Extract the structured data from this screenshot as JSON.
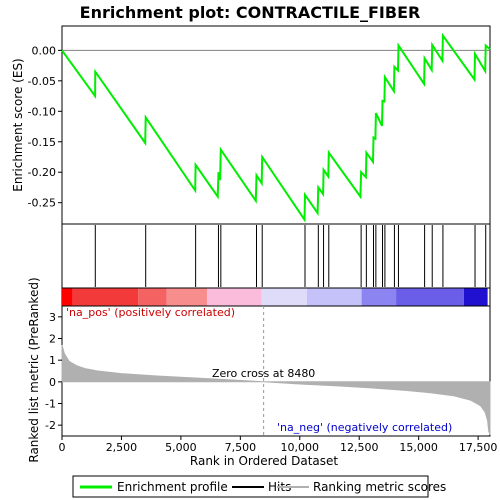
{
  "chart_data": {
    "type": "line",
    "title": "Enrichment plot: CONTRACTILE_FIBER",
    "top_panel": {
      "ylabel": "Enrichment score (ES)",
      "ylim": [
        -0.285,
        0.04
      ],
      "yticks": [
        0.0,
        -0.05,
        -0.1,
        -0.15,
        -0.2,
        -0.25
      ],
      "ytick_labels": [
        "0.00",
        "-0.05",
        "-0.10",
        "-0.15",
        "-0.20",
        "-0.25"
      ],
      "series_name": "Enrichment profile",
      "line_color": "#00ee00",
      "profile": [
        [
          0,
          0.0
        ],
        [
          1390,
          -0.075
        ],
        [
          1400,
          -0.035
        ],
        [
          3500,
          -0.152
        ],
        [
          3520,
          -0.11
        ],
        [
          5600,
          -0.23
        ],
        [
          5620,
          -0.188
        ],
        [
          6550,
          -0.24
        ],
        [
          6580,
          -0.2
        ],
        [
          6650,
          -0.213
        ],
        [
          6680,
          -0.163
        ],
        [
          8150,
          -0.247
        ],
        [
          8180,
          -0.205
        ],
        [
          8400,
          -0.218
        ],
        [
          8420,
          -0.175
        ],
        [
          10200,
          -0.278
        ],
        [
          10220,
          -0.237
        ],
        [
          10750,
          -0.267
        ],
        [
          10780,
          -0.225
        ],
        [
          10980,
          -0.236
        ],
        [
          11000,
          -0.196
        ],
        [
          11200,
          -0.207
        ],
        [
          11220,
          -0.168
        ],
        [
          12550,
          -0.24
        ],
        [
          12580,
          -0.2
        ],
        [
          12780,
          -0.208
        ],
        [
          12800,
          -0.168
        ],
        [
          13080,
          -0.183
        ],
        [
          13100,
          -0.143
        ],
        [
          13180,
          -0.145
        ],
        [
          13200,
          -0.103
        ],
        [
          13460,
          -0.124
        ],
        [
          13480,
          -0.083
        ],
        [
          13560,
          -0.084
        ],
        [
          13580,
          -0.044
        ],
        [
          13960,
          -0.067
        ],
        [
          13980,
          -0.027
        ],
        [
          14130,
          -0.033
        ],
        [
          14150,
          0.008
        ],
        [
          15230,
          -0.055
        ],
        [
          15250,
          -0.013
        ],
        [
          15550,
          -0.032
        ],
        [
          15570,
          0.009
        ],
        [
          16000,
          -0.017
        ],
        [
          16020,
          0.024
        ],
        [
          17350,
          -0.048
        ],
        [
          17370,
          -0.006
        ],
        [
          17800,
          -0.034
        ],
        [
          17820,
          0.008
        ],
        [
          18000,
          0.002
        ]
      ]
    },
    "hits": {
      "legend_label": "Hits",
      "positions": [
        1400,
        3520,
        5620,
        6580,
        6680,
        8180,
        8420,
        10220,
        10780,
        11000,
        11220,
        12580,
        12800,
        13100,
        13200,
        13480,
        13580,
        13980,
        14150,
        15250,
        15570,
        16020,
        17370,
        17820
      ]
    },
    "ranking_bar": {
      "segments": [
        {
          "start": 0,
          "end": 450,
          "color": "#ff0000"
        },
        {
          "start": 450,
          "end": 3200,
          "color": "#f23a3a"
        },
        {
          "start": 3200,
          "end": 4400,
          "color": "#f56262"
        },
        {
          "start": 4400,
          "end": 6100,
          "color": "#f78d8d"
        },
        {
          "start": 6100,
          "end": 8400,
          "color": "#fbbcdc"
        },
        {
          "start": 8400,
          "end": 10300,
          "color": "#dedcf8"
        },
        {
          "start": 10300,
          "end": 12600,
          "color": "#c4c2f8"
        },
        {
          "start": 12600,
          "end": 14050,
          "color": "#8c84f0"
        },
        {
          "start": 14050,
          "end": 16900,
          "color": "#6a5ee8"
        },
        {
          "start": 16900,
          "end": 17900,
          "color": "#2010d0"
        }
      ]
    },
    "bottom_panel": {
      "ylabel": "Ranked list metric (PreRanked)",
      "xlabel": "Rank in Ordered Dataset",
      "ylim": [
        -2.5,
        3.5
      ],
      "yticks": [
        3,
        2,
        1,
        0,
        -1,
        -2
      ],
      "xlim": [
        0,
        18000
      ],
      "xticks": [
        0,
        2500,
        5000,
        7500,
        10000,
        12500,
        15000,
        17500
      ],
      "xtick_labels": [
        "0",
        "2,500",
        "5,000",
        "7,500",
        "10,000",
        "12,500",
        "15,000",
        "17,500"
      ],
      "metric_color": "#b0b0b0",
      "metric_curve": [
        [
          0,
          1.7
        ],
        [
          100,
          1.3
        ],
        [
          300,
          0.95
        ],
        [
          600,
          0.75
        ],
        [
          1000,
          0.6
        ],
        [
          1500,
          0.5
        ],
        [
          2500,
          0.38
        ],
        [
          4000,
          0.27
        ],
        [
          5500,
          0.18
        ],
        [
          7000,
          0.1
        ],
        [
          8480,
          0.0
        ],
        [
          10000,
          -0.1
        ],
        [
          11500,
          -0.18
        ],
        [
          13000,
          -0.28
        ],
        [
          14500,
          -0.4
        ],
        [
          15500,
          -0.5
        ],
        [
          16500,
          -0.65
        ],
        [
          17200,
          -0.85
        ],
        [
          17600,
          -1.1
        ],
        [
          17800,
          -1.4
        ],
        [
          17900,
          -1.8
        ],
        [
          17950,
          -2.3
        ],
        [
          18000,
          -2.4
        ]
      ],
      "zero_cross_rank": 8480,
      "zero_cross_label": "Zero cross at 8480",
      "pos_label": "'na_pos' (positively correlated)",
      "neg_label": "'na_neg' (negatively correlated)",
      "pos_label_color": "#cc0000",
      "neg_label_color": "#0000cc"
    },
    "legend": {
      "placement": "bottom",
      "items": [
        {
          "label": "Enrichment profile",
          "color": "#00ee00"
        },
        {
          "label": "Hits",
          "color": "#000000"
        },
        {
          "label": "Ranking metric scores",
          "color": "#b0b0b0"
        }
      ]
    }
  }
}
